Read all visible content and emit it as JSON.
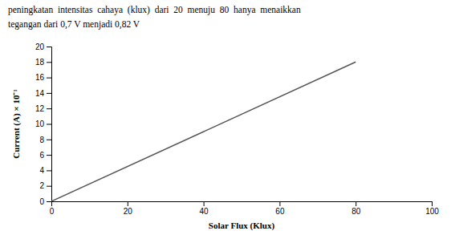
{
  "chart_data": {
    "type": "line",
    "x": [
      0,
      80
    ],
    "values": [
      0,
      18
    ],
    "color": "#555555",
    "xlim": [
      0,
      100
    ],
    "ylim": [
      0,
      20
    ],
    "xticks": [
      0,
      20,
      40,
      60,
      80,
      100
    ],
    "yticks": [
      0,
      2,
      4,
      6,
      8,
      10,
      12,
      14,
      16,
      18,
      20
    ],
    "xlabel": "Solar Flux (Klux)",
    "ylabel": "Current (A) × 10⁻¹",
    "annotations": [
      "peningkatan  intensitas  cahaya  (klux)  dari  20  menuju  80  hanya  menaikkan",
      "tegangan dari 0,7 V menjadi 0,82 V"
    ],
    "grid": false
  }
}
